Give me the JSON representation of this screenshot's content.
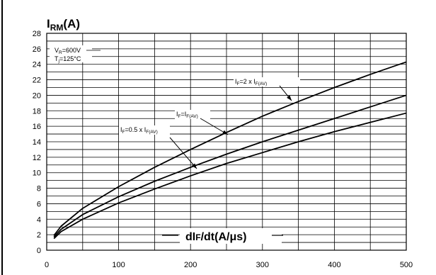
{
  "chart_data": {
    "type": "line",
    "y_title": {
      "main": "I",
      "sub": "RM",
      "rest": "(A)"
    },
    "x_title": {
      "pre": "dI",
      "sub": "F",
      "rest": "/dt(A/μs)"
    },
    "conditions": [
      "V",
      "R",
      "=600V",
      "T",
      "j",
      "=125°C"
    ],
    "xlim": [
      0,
      500
    ],
    "ylim": [
      0,
      28
    ],
    "x_ticks": [
      0,
      100,
      200,
      300,
      400,
      500
    ],
    "y_ticks": [
      0,
      2,
      4,
      6,
      8,
      10,
      12,
      14,
      16,
      18,
      20,
      22,
      24,
      26,
      28
    ],
    "grid": true,
    "x": [
      10,
      20,
      50,
      100,
      150,
      200,
      250,
      300,
      350,
      400,
      450,
      500
    ],
    "series": [
      {
        "name": "IF=2 x IF(AV)",
        "label_parts": [
          "I",
          "F",
          "=2 x I",
          "F(AV)"
        ],
        "values": [
          1.9,
          3.1,
          5.4,
          8.2,
          10.7,
          13.0,
          15.2,
          17.3,
          19.2,
          21.0,
          22.7,
          24.3
        ]
      },
      {
        "name": "IF=IF(AV)",
        "label_parts": [
          "I",
          "F",
          "=I",
          "F(AV)"
        ],
        "values": [
          1.7,
          2.7,
          4.6,
          6.9,
          8.9,
          10.7,
          12.4,
          14.0,
          15.5,
          17.0,
          18.5,
          20.0
        ]
      },
      {
        "name": "IF=0.5 x IF(AV)",
        "label_parts": [
          "I",
          "F",
          "=0.5 x I",
          "F(AV)"
        ],
        "values": [
          1.5,
          2.4,
          4.0,
          6.1,
          7.9,
          9.6,
          11.2,
          12.6,
          14.0,
          15.3,
          16.5,
          17.7
        ]
      }
    ]
  }
}
